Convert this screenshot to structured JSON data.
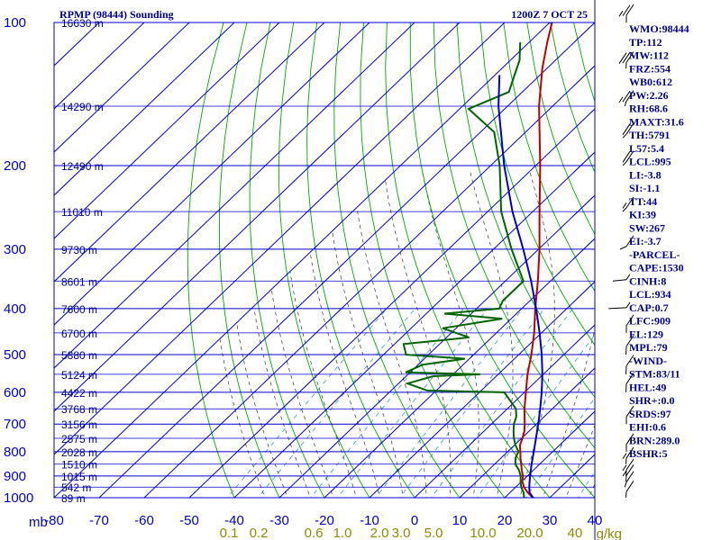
{
  "chart_data": {
    "type": "line",
    "title": "RPMP (98444) Sounding",
    "valid_time": "1200Z  7 OCT 25",
    "pressure_unit": "mb",
    "mixing_ratio_unit": "g/kg",
    "xlim": [
      -80,
      40
    ],
    "ylim": [
      1000,
      100
    ],
    "pressure_ticks": [
      100,
      200,
      300,
      400,
      500,
      600,
      700,
      800,
      900,
      1000
    ],
    "temperature_ticks": [
      -80,
      -70,
      -60,
      -50,
      -40,
      -30,
      -20,
      -10,
      0,
      10,
      20,
      30,
      40
    ],
    "height_labels": [
      {
        "p": 100,
        "label": "16630 m"
      },
      {
        "p": 150,
        "label": "14290 m"
      },
      {
        "p": 200,
        "label": "12490 m"
      },
      {
        "p": 250,
        "label": "11010 m"
      },
      {
        "p": 300,
        "label": "9730 m"
      },
      {
        "p": 350,
        "label": "8601 m"
      },
      {
        "p": 400,
        "label": "7600 m"
      },
      {
        "p": 450,
        "label": "6700 m"
      },
      {
        "p": 500,
        "label": "5880 m"
      },
      {
        "p": 550,
        "label": "5124 m"
      },
      {
        "p": 600,
        "label": "4422 m"
      },
      {
        "p": 650,
        "label": "3768 m"
      },
      {
        "p": 700,
        "label": "3156 m"
      },
      {
        "p": 750,
        "label": "2575 m"
      },
      {
        "p": 800,
        "label": "2028 m"
      },
      {
        "p": 850,
        "label": "1510 m"
      },
      {
        "p": 900,
        "label": "1015 m"
      },
      {
        "p": 950,
        "label": "542 m"
      },
      {
        "p": 1000,
        "label": "89 m"
      }
    ],
    "mixing_ratio_labels": [
      "0.1",
      "0.2",
      "0.6",
      "1.0",
      "2.0",
      "3.0",
      "5.0",
      "10.0",
      "20.0",
      "40"
    ],
    "series": [
      {
        "name": "Temperature",
        "color": "#c00000",
        "points": [
          [
            1006,
            27.0
          ],
          [
            1000,
            26.3
          ],
          [
            975,
            23.9
          ],
          [
            950,
            21.8
          ],
          [
            925,
            20.2
          ],
          [
            900,
            19.0
          ],
          [
            875,
            17.4
          ],
          [
            850,
            15.9
          ],
          [
            825,
            14.3
          ],
          [
            800,
            12.8
          ],
          [
            775,
            11.2
          ],
          [
            750,
            10.2
          ],
          [
            725,
            9.0
          ],
          [
            700,
            7.4
          ],
          [
            650,
            3.8
          ],
          [
            600,
            0.3
          ],
          [
            550,
            -3.5
          ],
          [
            500,
            -7.2
          ],
          [
            450,
            -11.6
          ],
          [
            400,
            -17.0
          ],
          [
            350,
            -22.8
          ],
          [
            300,
            -29.8
          ],
          [
            250,
            -38.5
          ],
          [
            200,
            -49.0
          ],
          [
            150,
            -63.0
          ],
          [
            125,
            -71.0
          ],
          [
            110,
            -76.0
          ],
          [
            100,
            -79.5
          ]
        ]
      },
      {
        "name": "Dewpoint",
        "color": "#006400",
        "points": [
          [
            1006,
            23.8
          ],
          [
            1000,
            24.3
          ],
          [
            975,
            23.0
          ],
          [
            950,
            21.2
          ],
          [
            925,
            19.8
          ],
          [
            900,
            18.5
          ],
          [
            875,
            16.8
          ],
          [
            850,
            14.6
          ],
          [
            825,
            13.2
          ],
          [
            800,
            12.4
          ],
          [
            775,
            10.2
          ],
          [
            750,
            8.3
          ],
          [
            725,
            6.6
          ],
          [
            700,
            5.0
          ],
          [
            675,
            3.8
          ],
          [
            650,
            1.9
          ],
          [
            600,
            -4.5
          ],
          [
            595,
            -22.0
          ],
          [
            575,
            -28.0
          ],
          [
            555,
            -24.0
          ],
          [
            550,
            -14.0
          ],
          [
            545,
            -31.0
          ],
          [
            525,
            -29.0
          ],
          [
            510,
            -21.0
          ],
          [
            500,
            -35.0
          ],
          [
            475,
            -38.0
          ],
          [
            460,
            -25.0
          ],
          [
            440,
            -33.0
          ],
          [
            420,
            -22.0
          ],
          [
            410,
            -36.0
          ],
          [
            400,
            -25.0
          ],
          [
            385,
            -26.0
          ],
          [
            350,
            -26.0
          ],
          [
            300,
            -36.0
          ],
          [
            250,
            -47.0
          ],
          [
            200,
            -58.0
          ],
          [
            170,
            -67.0
          ],
          [
            152,
            -78.0
          ],
          [
            140,
            -73.0
          ],
          [
            120,
            -78.0
          ],
          [
            110,
            -82.0
          ]
        ]
      },
      {
        "name": "Parcel",
        "color": "#0000cc",
        "points": [
          [
            1000,
            26.3
          ],
          [
            975,
            24.3
          ],
          [
            950,
            23.0
          ],
          [
            925,
            21.8
          ],
          [
            900,
            20.6
          ],
          [
            850,
            18.2
          ],
          [
            800,
            15.8
          ],
          [
            750,
            13.2
          ],
          [
            700,
            10.4
          ],
          [
            650,
            7.3
          ],
          [
            600,
            3.8
          ],
          [
            550,
            -0.2
          ],
          [
            500,
            -4.9
          ],
          [
            450,
            -10.4
          ],
          [
            400,
            -16.8
          ],
          [
            350,
            -24.3
          ],
          [
            300,
            -33.4
          ],
          [
            250,
            -44.5
          ],
          [
            200,
            -57.0
          ],
          [
            150,
            -72.0
          ],
          [
            129,
            -79.0
          ]
        ]
      }
    ],
    "wind_barbs": [
      {
        "p": 100,
        "dir": 270,
        "spd": 25
      },
      {
        "p": 125,
        "dir": 280,
        "spd": 30
      },
      {
        "p": 150,
        "dir": 290,
        "spd": 25
      },
      {
        "p": 175,
        "dir": 300,
        "spd": 20
      },
      {
        "p": 200,
        "dir": 300,
        "spd": 20
      },
      {
        "p": 250,
        "dir": 300,
        "spd": 15
      },
      {
        "p": 300,
        "dir": 310,
        "spd": 10
      },
      {
        "p": 350,
        "dir": 330,
        "spd": 5
      },
      {
        "p": 400,
        "dir": 20,
        "spd": 5
      },
      {
        "p": 450,
        "dir": 90,
        "spd": 10
      },
      {
        "p": 500,
        "dir": 100,
        "spd": 10
      },
      {
        "p": 550,
        "dir": 100,
        "spd": 10
      },
      {
        "p": 600,
        "dir": 100,
        "spd": 10
      },
      {
        "p": 700,
        "dir": 90,
        "spd": 10
      },
      {
        "p": 800,
        "dir": 90,
        "spd": 10
      },
      {
        "p": 850,
        "dir": 80,
        "spd": 15
      },
      {
        "p": 900,
        "dir": 80,
        "spd": 15
      },
      {
        "p": 925,
        "dir": 80,
        "spd": 15
      },
      {
        "p": 950,
        "dir": 70,
        "spd": 10
      },
      {
        "p": 1000,
        "dir": 80,
        "spd": 10
      }
    ],
    "indices": [
      "WMO:98444",
      "TP:112",
      "MW:112",
      "FRZ:554",
      "WB0:612",
      "PW:2.26",
      "RH:68.6",
      "MAXT:31.6",
      "TH:5791",
      "L57:5.4",
      "LCL:995",
      "LI:-3.8",
      "SI:-1.1",
      "TT:44",
      "KI:39",
      "SW:267",
      "EI:-3.7",
      "-PARCEL-",
      "CAPE:1530",
      "CINH:8",
      "LCL:934",
      "CAP:0.7",
      "LFC:909",
      "EL:129",
      "MPL:79",
      "-WIND-",
      "STM:83/11",
      "HEL:49",
      "SHR+:0.0",
      "SRDS:97",
      "EHI:0.6",
      "BRN:289.0",
      "BSHR:5"
    ]
  },
  "colors": {
    "isobar": "#0000cc",
    "isotherm": "#0000cc",
    "dry_adiabat": "#00aa00",
    "moist_adiabat": "#333333",
    "mixing_ratio": "#3399cc",
    "title": "#00008b",
    "mixing_label": "#8b8b00"
  }
}
